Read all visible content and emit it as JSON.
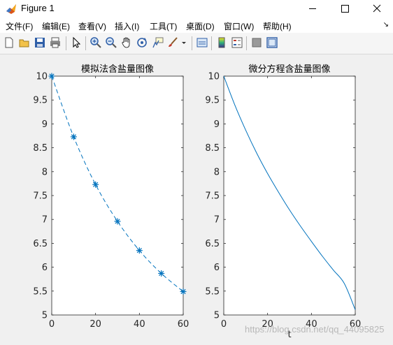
{
  "window": {
    "title": "Figure 1"
  },
  "menu": [
    "文件(F)",
    "编辑(E)",
    "查看(V)",
    "插入(I)",
    "工具(T)",
    "桌面(D)",
    "窗口(W)",
    "帮助(H)"
  ],
  "icons": [
    "new-file-icon",
    "open-folder-icon",
    "save-icon",
    "print-icon",
    "pointer-icon",
    "zoom-in-icon",
    "zoom-out-icon",
    "pan-icon",
    "rotate-icon",
    "data-cursor-icon",
    "brush-icon",
    "link-plot-icon",
    "colorbar-icon",
    "legend-icon",
    "hide-tools-icon",
    "show-tools-icon"
  ],
  "chart_data": [
    {
      "type": "line",
      "title": "模拟法含盐量图像",
      "xlim": [
        0,
        60
      ],
      "ylim": [
        5,
        10
      ],
      "xticks": [
        "0",
        "20",
        "40",
        "60"
      ],
      "yticks": [
        "5",
        "5.5",
        "6",
        "6.5",
        "7",
        "7.5",
        "8",
        "8.5",
        "9",
        "9.5",
        "10"
      ],
      "line_style": "dashed",
      "marker": "*",
      "series": [
        {
          "x": [
            0,
            10,
            20,
            30,
            40,
            50,
            60
          ],
          "y": [
            10,
            8.73,
            7.73,
            6.96,
            6.35,
            5.87,
            5.49
          ]
        }
      ],
      "color": "#0072bd"
    },
    {
      "type": "line",
      "title": "微分方程含盐量图像",
      "xlabel": "t",
      "xlim": [
        0,
        60
      ],
      "ylim": [
        5,
        10
      ],
      "xticks": [
        "0",
        "20",
        "40",
        "60"
      ],
      "yticks": [
        "5",
        "5.5",
        "6",
        "6.5",
        "7",
        "7.5",
        "8",
        "8.5",
        "9",
        "9.5",
        "10"
      ],
      "line_style": "solid",
      "series": [
        {
          "x": [
            0,
            5,
            10,
            15,
            20,
            25,
            30,
            35,
            40,
            45,
            50,
            55,
            60
          ],
          "y": [
            10,
            9.4,
            8.87,
            8.39,
            7.96,
            7.57,
            7.2,
            6.86,
            6.54,
            6.23,
            5.94,
            5.66,
            5.11
          ]
        }
      ],
      "color": "#0072bd"
    }
  ],
  "watermark": "https://blog.csdn.net/qq_44095825"
}
